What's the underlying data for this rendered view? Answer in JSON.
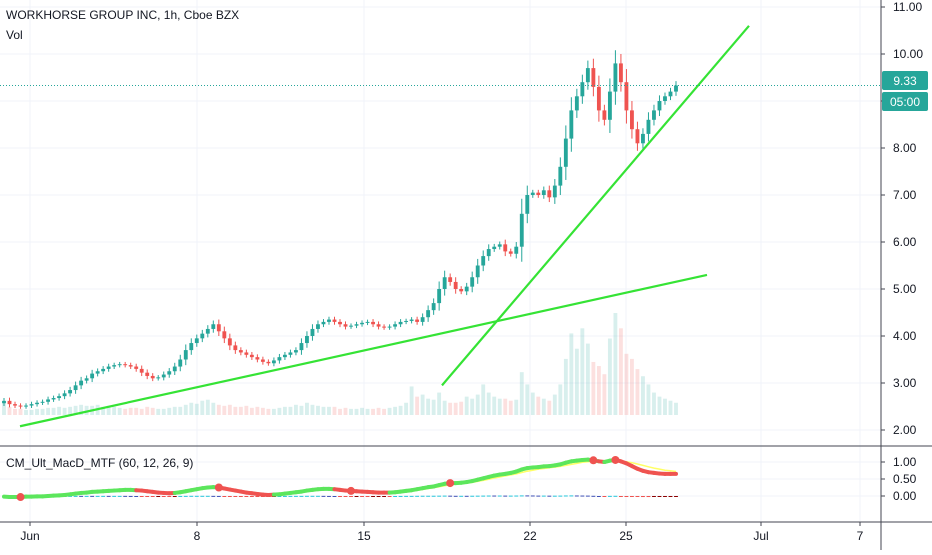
{
  "header": {
    "symbol_title": "WORKHORSE GROUP INC, 1h, Cboe BZX",
    "volume_label": "Vol"
  },
  "indicator": {
    "label": "CM_Ult_MacD_MTF (60, 12, 26, 9)"
  },
  "price_badge": {
    "value": "9.33",
    "color": "#26a69a"
  },
  "countdown_badge": {
    "value": "05:00",
    "color": "#26a69a"
  },
  "colors": {
    "up": "#26a69a",
    "down": "#ef5350",
    "trendline": "#35e335",
    "macd_up": "#5ce65c",
    "macd_down": "#ef5350",
    "signal": "#ffff66",
    "hist_pos_strong": "#26c6da",
    "hist_pos_weak": "#3f51b5",
    "hist_neg_strong": "#ef5350",
    "hist_neg_weak": "#8b0000",
    "cross_dot": "#ef5350",
    "grid": "#f0f3fa",
    "axis_text": "#131722"
  },
  "chart_data": [
    {
      "type": "candlestick",
      "title": "WORKHORSE GROUP INC, 1h, Cboe BZX",
      "x_ticks": [
        "Jun",
        "8",
        "15",
        "22",
        "25",
        "Jul",
        "7"
      ],
      "y_ticks": [
        "11.00",
        "10.00",
        "9.00",
        "8.00",
        "7.00",
        "6.00",
        "5.00",
        "4.00",
        "3.00",
        "2.00"
      ],
      "ylim": [
        1.7,
        11.1
      ],
      "last_price": 9.33,
      "grid": true,
      "ohlc_close_path": [
        2.62,
        2.55,
        2.52,
        2.5,
        2.52,
        2.55,
        2.58,
        2.6,
        2.65,
        2.68,
        2.72,
        2.78,
        2.85,
        2.95,
        3.05,
        3.1,
        3.2,
        3.25,
        3.3,
        3.35,
        3.38,
        3.4,
        3.38,
        3.35,
        3.3,
        3.22,
        3.15,
        3.1,
        3.12,
        3.18,
        3.25,
        3.35,
        3.5,
        3.7,
        3.85,
        3.95,
        4.05,
        4.15,
        4.25,
        4.1,
        3.95,
        3.8,
        3.7,
        3.65,
        3.6,
        3.55,
        3.5,
        3.45,
        3.42,
        3.48,
        3.55,
        3.6,
        3.65,
        3.7,
        3.85,
        4.0,
        4.15,
        4.25,
        4.3,
        4.35,
        4.3,
        4.25,
        4.2,
        4.22,
        4.25,
        4.28,
        4.3,
        4.25,
        4.2,
        4.18,
        4.2,
        4.25,
        4.3,
        4.32,
        4.35,
        4.3,
        4.4,
        4.55,
        4.7,
        5.0,
        5.25,
        5.15,
        5.0,
        4.95,
        5.05,
        5.25,
        5.5,
        5.7,
        5.85,
        5.9,
        5.95,
        5.8,
        5.75,
        5.9,
        6.6,
        7.0,
        7.05,
        7.0,
        7.1,
        6.95,
        7.2,
        7.6,
        8.2,
        8.8,
        9.1,
        9.4,
        9.7,
        9.3,
        8.8,
        8.6,
        9.2,
        9.8,
        9.4,
        8.8,
        8.4,
        8.1,
        8.3,
        8.6,
        8.8,
        9.0,
        9.1,
        9.2,
        9.33
      ],
      "trendlines": [
        {
          "name": "lower",
          "from_price": 2.08,
          "to_price": 5.3
        },
        {
          "name": "upper",
          "from_price": 2.95,
          "to_price": 10.6
        }
      ]
    },
    {
      "type": "bar",
      "series_name": "Vol",
      "values_relative": [
        0.12,
        0.08,
        0.06,
        0.06,
        0.05,
        0.05,
        0.06,
        0.06,
        0.07,
        0.07,
        0.08,
        0.07,
        0.08,
        0.09,
        0.1,
        0.09,
        0.09,
        0.1,
        0.08,
        0.09,
        0.08,
        0.07,
        0.06,
        0.07,
        0.07,
        0.06,
        0.08,
        0.07,
        0.06,
        0.06,
        0.07,
        0.08,
        0.08,
        0.1,
        0.12,
        0.11,
        0.14,
        0.15,
        0.12,
        0.1,
        0.09,
        0.1,
        0.08,
        0.08,
        0.09,
        0.07,
        0.08,
        0.07,
        0.06,
        0.06,
        0.07,
        0.08,
        0.08,
        0.1,
        0.09,
        0.12,
        0.1,
        0.09,
        0.08,
        0.08,
        0.08,
        0.06,
        0.07,
        0.06,
        0.06,
        0.07,
        0.06,
        0.06,
        0.07,
        0.06,
        0.07,
        0.08,
        0.09,
        0.12,
        0.28,
        0.18,
        0.2,
        0.16,
        0.15,
        0.22,
        0.14,
        0.12,
        0.12,
        0.13,
        0.18,
        0.16,
        0.2,
        0.3,
        0.22,
        0.18,
        0.16,
        0.16,
        0.14,
        0.15,
        0.42,
        0.3,
        0.22,
        0.18,
        0.16,
        0.14,
        0.2,
        0.3,
        0.55,
        0.8,
        0.65,
        0.85,
        0.7,
        0.52,
        0.48,
        0.4,
        0.75,
        1.0,
        0.85,
        0.6,
        0.55,
        0.45,
        0.38,
        0.3,
        0.22,
        0.18,
        0.16,
        0.14,
        0.12
      ]
    },
    {
      "type": "line",
      "title": "CM_Ult_MacD_MTF (60, 12, 26, 9)",
      "y_ticks": [
        "1.00",
        "0.50",
        "0.00"
      ],
      "ylim": [
        -0.35,
        1.15
      ],
      "series": [
        {
          "role": "macd",
          "values": [
            -0.02,
            -0.03,
            -0.03,
            -0.03,
            -0.02,
            -0.02,
            -0.01,
            -0.01,
            0.0,
            0.01,
            0.02,
            0.03,
            0.05,
            0.07,
            0.09,
            0.1,
            0.12,
            0.13,
            0.14,
            0.15,
            0.16,
            0.17,
            0.18,
            0.18,
            0.17,
            0.16,
            0.14,
            0.12,
            0.1,
            0.09,
            0.08,
            0.09,
            0.11,
            0.14,
            0.17,
            0.2,
            0.23,
            0.25,
            0.26,
            0.25,
            0.22,
            0.19,
            0.16,
            0.13,
            0.1,
            0.08,
            0.06,
            0.04,
            0.03,
            0.04,
            0.05,
            0.07,
            0.09,
            0.11,
            0.13,
            0.16,
            0.18,
            0.2,
            0.21,
            0.21,
            0.2,
            0.18,
            0.16,
            0.15,
            0.14,
            0.13,
            0.12,
            0.11,
            0.1,
            0.1,
            0.1,
            0.11,
            0.13,
            0.15,
            0.17,
            0.2,
            0.23,
            0.26,
            0.28,
            0.32,
            0.36,
            0.38,
            0.38,
            0.39,
            0.41,
            0.44,
            0.48,
            0.52,
            0.56,
            0.6,
            0.63,
            0.65,
            0.68,
            0.72,
            0.78,
            0.82,
            0.84,
            0.85,
            0.87,
            0.88,
            0.9,
            0.93,
            0.98,
            1.02,
            1.04,
            1.06,
            1.07,
            1.05,
            1.02,
            1.0,
            1.04,
            1.06,
            1.02,
            0.96,
            0.88,
            0.8,
            0.74,
            0.7,
            0.68,
            0.66,
            0.65,
            0.65,
            0.65
          ]
        },
        {
          "role": "signal",
          "values": [
            -0.03,
            -0.03,
            -0.03,
            -0.03,
            -0.03,
            -0.03,
            -0.02,
            -0.02,
            -0.01,
            0.0,
            0.01,
            0.02,
            0.03,
            0.05,
            0.07,
            0.08,
            0.1,
            0.11,
            0.12,
            0.13,
            0.14,
            0.15,
            0.16,
            0.17,
            0.17,
            0.17,
            0.16,
            0.14,
            0.12,
            0.11,
            0.1,
            0.1,
            0.1,
            0.12,
            0.14,
            0.17,
            0.2,
            0.22,
            0.24,
            0.24,
            0.23,
            0.21,
            0.18,
            0.16,
            0.13,
            0.11,
            0.09,
            0.07,
            0.05,
            0.05,
            0.05,
            0.06,
            0.07,
            0.09,
            0.11,
            0.13,
            0.15,
            0.17,
            0.19,
            0.2,
            0.2,
            0.19,
            0.18,
            0.17,
            0.16,
            0.15,
            0.14,
            0.13,
            0.12,
            0.11,
            0.11,
            0.11,
            0.12,
            0.13,
            0.15,
            0.17,
            0.19,
            0.22,
            0.24,
            0.27,
            0.3,
            0.33,
            0.35,
            0.36,
            0.38,
            0.4,
            0.43,
            0.46,
            0.49,
            0.53,
            0.56,
            0.59,
            0.62,
            0.65,
            0.69,
            0.73,
            0.76,
            0.79,
            0.81,
            0.83,
            0.85,
            0.87,
            0.9,
            0.93,
            0.96,
            0.99,
            1.01,
            1.02,
            1.02,
            1.01,
            1.02,
            1.03,
            1.03,
            1.01,
            0.98,
            0.94,
            0.9,
            0.86,
            0.82,
            0.79,
            0.76,
            0.74,
            0.72
          ]
        }
      ],
      "cross_markers_at_index": [
        3,
        39,
        63,
        81,
        107,
        111
      ]
    }
  ]
}
